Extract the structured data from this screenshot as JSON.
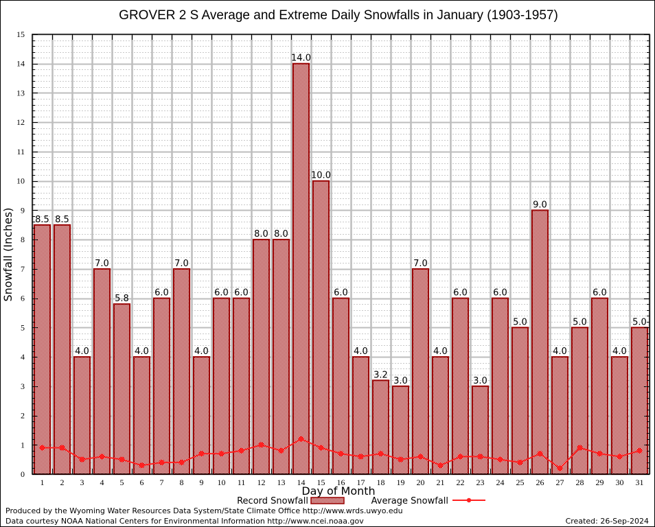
{
  "chart_data": {
    "type": "bar",
    "title": "GROVER 2 S Average and Extreme Daily Snowfalls in January (1903-1957)",
    "xlabel": "Day of Month",
    "ylabel": "Snowfall (Inches)",
    "ylim": [
      0,
      15
    ],
    "yticks": [
      0,
      1,
      2,
      3,
      4,
      5,
      6,
      7,
      8,
      9,
      10,
      11,
      12,
      13,
      14,
      15
    ],
    "grid": true,
    "categories": [
      "1",
      "2",
      "3",
      "4",
      "5",
      "6",
      "7",
      "8",
      "9",
      "10",
      "11",
      "12",
      "13",
      "14",
      "15",
      "16",
      "17",
      "18",
      "19",
      "20",
      "21",
      "22",
      "23",
      "24",
      "25",
      "26",
      "27",
      "28",
      "29",
      "30",
      "31"
    ],
    "series": [
      {
        "name": "Record Snowfall",
        "type": "bar",
        "color": "#990000",
        "values": [
          8.5,
          8.5,
          4.0,
          7.0,
          5.8,
          4.0,
          6.0,
          7.0,
          4.0,
          6.0,
          6.0,
          8.0,
          8.0,
          14.0,
          10.0,
          6.0,
          4.0,
          3.2,
          3.0,
          7.0,
          4.0,
          6.0,
          3.0,
          6.0,
          5.0,
          9.0,
          4.0,
          5.0,
          6.0,
          4.0,
          5.0
        ],
        "labels": [
          "8.5",
          "8.5",
          "4.0",
          "7.0",
          "5.8",
          "4.0",
          "6.0",
          "7.0",
          "4.0",
          "6.0",
          "6.0",
          "8.0",
          "8.0",
          "14.0",
          "10.0",
          "6.0",
          "4.0",
          "3.2",
          "3.0",
          "7.0",
          "4.0",
          "6.0",
          "3.0",
          "6.0",
          "5.0",
          "9.0",
          "4.0",
          "5.0",
          "6.0",
          "4.0",
          "5.0"
        ]
      },
      {
        "name": "Average Snowfall",
        "type": "line",
        "color": "#ff2020",
        "values": [
          0.9,
          0.9,
          0.5,
          0.6,
          0.5,
          0.3,
          0.4,
          0.4,
          0.7,
          0.7,
          0.8,
          1.0,
          0.8,
          1.2,
          0.9,
          0.7,
          0.6,
          0.7,
          0.5,
          0.6,
          0.3,
          0.6,
          0.6,
          0.5,
          0.4,
          0.7,
          0.2,
          0.9,
          0.7,
          0.6,
          0.8
        ]
      }
    ],
    "legend": {
      "position": "bottom-center",
      "entries": [
        "Record Snowfall",
        "Average Snowfall"
      ]
    }
  },
  "footer": {
    "produced_by": "Produced by the Wyoming Water Resources Data System/State Climate Office http://www.wrds.uwyo.edu",
    "data_courtesy": "Data courtesy NOAA National Centers for Environmental Information http://www.ncei.noaa.gov",
    "created": "Created: 26-Sep-2024"
  }
}
